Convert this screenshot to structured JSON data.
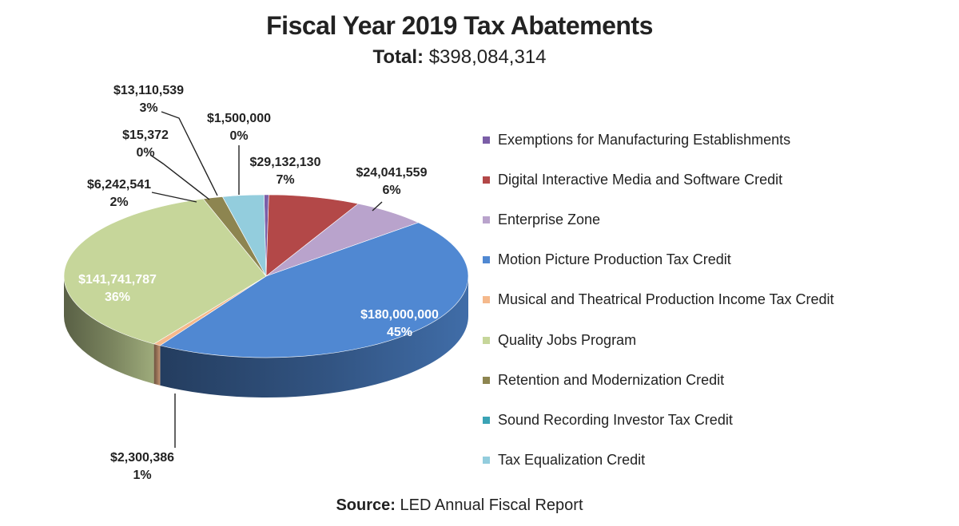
{
  "title": "Fiscal Year 2019 Tax Abatements",
  "subtitle": {
    "label": "Total:",
    "value": "$398,084,314"
  },
  "source": {
    "label": "Source:",
    "value": "LED Annual Fiscal Report"
  },
  "chart_data": {
    "type": "pie",
    "title": "Fiscal Year 2019 Tax Abatements",
    "subtitle": "Total: $398,084,314",
    "legend_position": "right",
    "slices": [
      {
        "name": "Exemptions for Manufacturing Establishments",
        "value": 1500000,
        "value_label": "$1,500,000",
        "percent_label": "0%",
        "color": "#7b5ea7"
      },
      {
        "name": "Digital Interactive Media and Software Credit",
        "value": 29132130,
        "value_label": "$29,132,130",
        "percent_label": "7%",
        "color": "#b34848"
      },
      {
        "name": "Enterprise Zone",
        "value": 24041559,
        "value_label": "$24,041,559",
        "percent_label": "6%",
        "color": "#b9a3cc"
      },
      {
        "name": "Motion Picture Production Tax Credit",
        "value": 180000000,
        "value_label": "$180,000,000",
        "percent_label": "45%",
        "color": "#5088d2"
      },
      {
        "name": "Musical and Theatrical Production Income Tax Credit",
        "value": 2300386,
        "value_label": "$2,300,386",
        "percent_label": "1%",
        "color": "#f5b98c"
      },
      {
        "name": "Quality Jobs Program",
        "value": 141741787,
        "value_label": "$141,741,787",
        "percent_label": "36%",
        "color": "#c6d69a"
      },
      {
        "name": "Retention and Modernization Credit",
        "value": 6242541,
        "value_label": "$6,242,541",
        "percent_label": "2%",
        "color": "#8d8550"
      },
      {
        "name": "Sound Recording Investor Tax Credit",
        "value": 15372,
        "value_label": "$15,372",
        "percent_label": "0%",
        "color": "#3aa3b5"
      },
      {
        "name": "Tax Equalization Credit",
        "value": 13110539,
        "value_label": "$13,110,539",
        "percent_label": "3%",
        "color": "#93cddd"
      }
    ]
  }
}
